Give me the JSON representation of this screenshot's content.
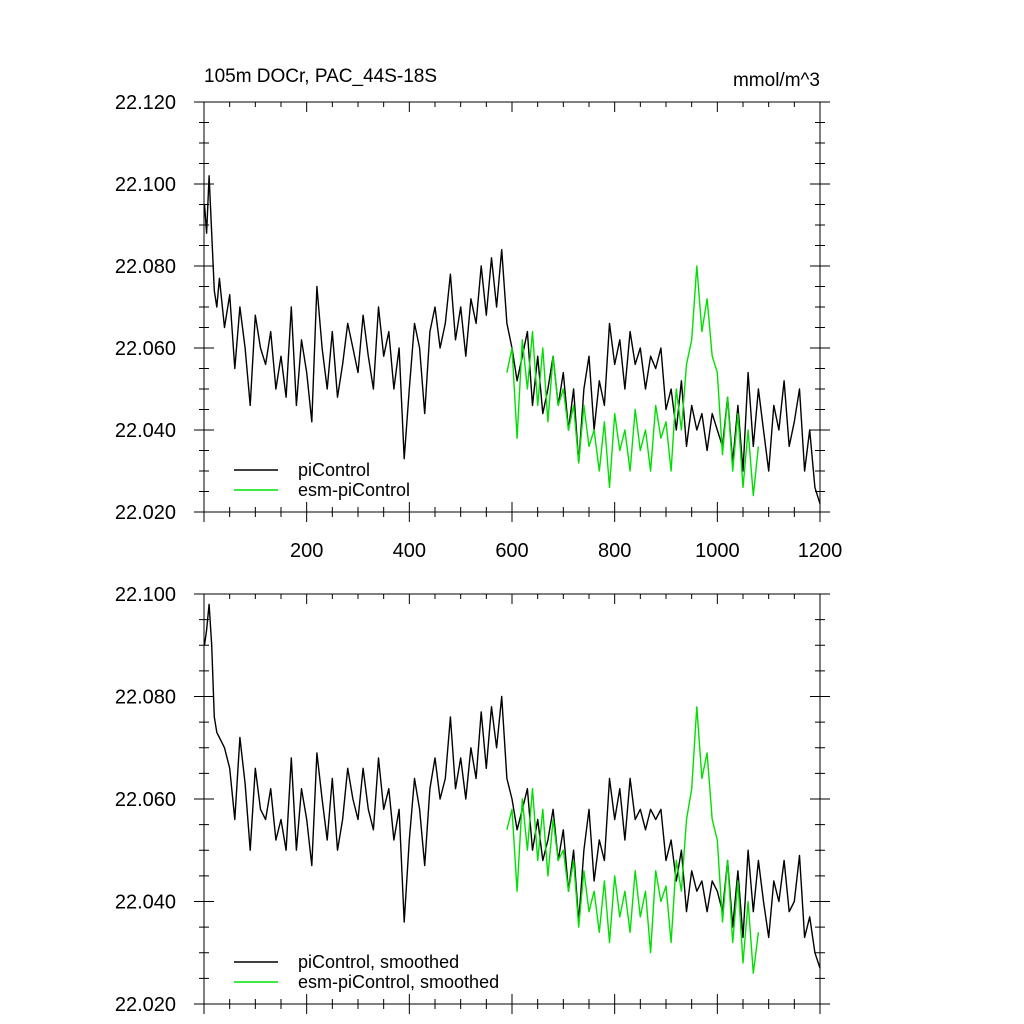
{
  "chart_data": [
    {
      "type": "line",
      "title": "105m DOCr, PAC_44S-18S",
      "units": "mmol/m^3",
      "xlabel": "",
      "ylabel": "",
      "xlim": [
        0,
        1200
      ],
      "ylim": [
        22.02,
        22.12
      ],
      "x_ticks": [
        200,
        400,
        600,
        800,
        1000,
        1200
      ],
      "y_ticks": [
        "22.020",
        "22.040",
        "22.060",
        "22.080",
        "22.100",
        "22.120"
      ],
      "legend_position": "bottom-left",
      "grid": false,
      "series": [
        {
          "name": "piControl",
          "color": "#000000",
          "x": [
            1,
            5,
            10,
            15,
            20,
            25,
            30,
            40,
            50,
            60,
            70,
            80,
            90,
            100,
            110,
            120,
            130,
            140,
            150,
            160,
            170,
            180,
            190,
            200,
            210,
            220,
            230,
            240,
            250,
            260,
            270,
            280,
            290,
            300,
            310,
            320,
            330,
            340,
            350,
            360,
            370,
            380,
            390,
            400,
            410,
            420,
            430,
            440,
            450,
            460,
            470,
            480,
            490,
            500,
            510,
            520,
            530,
            540,
            550,
            560,
            570,
            580,
            590,
            600,
            610,
            620,
            630,
            640,
            650,
            660,
            670,
            680,
            690,
            700,
            710,
            720,
            730,
            740,
            750,
            760,
            770,
            780,
            790,
            800,
            810,
            820,
            830,
            840,
            850,
            860,
            870,
            880,
            890,
            900,
            910,
            920,
            930,
            940,
            950,
            960,
            970,
            980,
            990,
            1000,
            1010,
            1020,
            1030,
            1040,
            1050,
            1060,
            1070,
            1080,
            1090,
            1100,
            1110,
            1120,
            1130,
            1140,
            1150,
            1160,
            1170,
            1180,
            1190,
            1200
          ],
          "values": [
            22.095,
            22.088,
            22.102,
            22.088,
            22.074,
            22.07,
            22.077,
            22.065,
            22.073,
            22.055,
            22.07,
            22.06,
            22.046,
            22.068,
            22.06,
            22.056,
            22.064,
            22.05,
            22.058,
            22.048,
            22.07,
            22.046,
            22.062,
            22.054,
            22.042,
            22.075,
            22.06,
            22.05,
            22.064,
            22.048,
            22.056,
            22.066,
            22.06,
            22.054,
            22.068,
            22.058,
            22.05,
            22.07,
            22.058,
            22.064,
            22.05,
            22.06,
            22.033,
            22.05,
            22.066,
            22.06,
            22.044,
            22.064,
            22.07,
            22.06,
            22.066,
            22.078,
            22.062,
            22.07,
            22.058,
            22.072,
            22.066,
            22.08,
            22.068,
            22.082,
            22.07,
            22.084,
            22.066,
            22.06,
            22.052,
            22.058,
            22.064,
            22.046,
            22.058,
            22.044,
            22.05,
            22.058,
            22.046,
            22.054,
            22.04,
            22.05,
            22.032,
            22.05,
            22.058,
            22.04,
            22.052,
            22.046,
            22.066,
            22.056,
            22.062,
            22.05,
            22.064,
            22.056,
            22.06,
            22.05,
            22.058,
            22.055,
            22.06,
            22.045,
            22.05,
            22.04,
            22.052,
            22.036,
            22.046,
            22.04,
            22.044,
            22.035,
            22.044,
            22.04,
            22.036,
            22.048,
            22.032,
            22.046,
            22.03,
            22.054,
            22.036,
            22.05,
            22.04,
            22.03,
            22.046,
            22.04,
            22.052,
            22.036,
            22.042,
            22.05,
            22.03,
            22.04,
            22.026,
            22.022
          ]
        },
        {
          "name": "esm-piControl",
          "color": "#00e000",
          "x": [
            590,
            600,
            610,
            620,
            630,
            640,
            650,
            660,
            670,
            680,
            690,
            700,
            710,
            720,
            730,
            740,
            750,
            760,
            770,
            780,
            790,
            800,
            810,
            820,
            830,
            840,
            850,
            860,
            870,
            880,
            890,
            900,
            910,
            920,
            930,
            940,
            950,
            960,
            970,
            980,
            990,
            1000,
            1010,
            1020,
            1030,
            1040,
            1050,
            1060,
            1070,
            1080
          ],
          "values": [
            22.054,
            22.06,
            22.038,
            22.062,
            22.05,
            22.064,
            22.046,
            22.06,
            22.042,
            22.058,
            22.046,
            22.05,
            22.04,
            22.046,
            22.032,
            22.046,
            22.036,
            22.04,
            22.03,
            22.042,
            22.026,
            22.044,
            22.035,
            22.04,
            22.03,
            22.045,
            22.035,
            22.04,
            22.03,
            22.046,
            22.038,
            22.042,
            22.03,
            22.05,
            22.04,
            22.056,
            22.062,
            22.08,
            22.064,
            22.072,
            22.058,
            22.054,
            22.034,
            22.048,
            22.03,
            22.044,
            22.026,
            22.04,
            22.024,
            22.036
          ]
        }
      ]
    },
    {
      "type": "line",
      "title": "",
      "xlabel": "",
      "ylabel": "",
      "xlim": [
        0,
        1200
      ],
      "ylim": [
        22.02,
        22.1
      ],
      "y_ticks": [
        "22.020",
        "22.040",
        "22.060",
        "22.080",
        "22.100"
      ],
      "legend_position": "bottom-left",
      "grid": false,
      "series": [
        {
          "name": "piControl, smoothed",
          "color": "#000000",
          "x": [
            1,
            5,
            10,
            15,
            20,
            25,
            30,
            40,
            50,
            60,
            70,
            80,
            90,
            100,
            110,
            120,
            130,
            140,
            150,
            160,
            170,
            180,
            190,
            200,
            210,
            220,
            230,
            240,
            250,
            260,
            270,
            280,
            290,
            300,
            310,
            320,
            330,
            340,
            350,
            360,
            370,
            380,
            390,
            400,
            410,
            420,
            430,
            440,
            450,
            460,
            470,
            480,
            490,
            500,
            510,
            520,
            530,
            540,
            550,
            560,
            570,
            580,
            590,
            600,
            610,
            620,
            630,
            640,
            650,
            660,
            670,
            680,
            690,
            700,
            710,
            720,
            730,
            740,
            750,
            760,
            770,
            780,
            790,
            800,
            810,
            820,
            830,
            840,
            850,
            860,
            870,
            880,
            890,
            900,
            910,
            920,
            930,
            940,
            950,
            960,
            970,
            980,
            990,
            1000,
            1010,
            1020,
            1030,
            1040,
            1050,
            1060,
            1070,
            1080,
            1090,
            1100,
            1110,
            1120,
            1130,
            1140,
            1150,
            1160,
            1170,
            1180,
            1190,
            1200
          ],
          "values": [
            22.09,
            22.093,
            22.098,
            22.09,
            22.076,
            22.073,
            22.072,
            22.07,
            22.066,
            22.056,
            22.072,
            22.063,
            22.05,
            22.066,
            22.058,
            22.056,
            22.062,
            22.052,
            22.056,
            22.05,
            22.068,
            22.05,
            22.062,
            22.056,
            22.047,
            22.069,
            22.06,
            22.052,
            22.064,
            22.05,
            22.056,
            22.066,
            22.06,
            22.056,
            22.066,
            22.058,
            22.054,
            22.068,
            22.058,
            22.062,
            22.052,
            22.058,
            22.036,
            22.052,
            22.064,
            22.058,
            22.047,
            22.062,
            22.068,
            22.06,
            22.064,
            22.076,
            22.062,
            22.068,
            22.06,
            22.07,
            22.064,
            22.077,
            22.066,
            22.078,
            22.07,
            22.08,
            22.064,
            22.06,
            22.054,
            22.058,
            22.062,
            22.05,
            22.056,
            22.048,
            22.052,
            22.058,
            22.048,
            22.054,
            22.042,
            22.05,
            22.036,
            22.05,
            22.058,
            22.044,
            22.052,
            22.048,
            22.064,
            22.056,
            22.062,
            22.052,
            22.064,
            22.056,
            22.058,
            22.054,
            22.058,
            22.056,
            22.058,
            22.048,
            22.052,
            22.044,
            22.05,
            22.038,
            22.046,
            22.042,
            22.044,
            22.038,
            22.044,
            22.042,
            22.038,
            22.048,
            22.035,
            22.046,
            22.033,
            22.05,
            22.038,
            22.048,
            22.04,
            22.033,
            22.044,
            22.04,
            22.048,
            22.038,
            22.04,
            22.049,
            22.033,
            22.037,
            22.03,
            22.027
          ]
        },
        {
          "name": "esm-piControl, smoothed",
          "color": "#00e000",
          "x": [
            590,
            600,
            610,
            620,
            630,
            640,
            650,
            660,
            670,
            680,
            690,
            700,
            710,
            720,
            730,
            740,
            750,
            760,
            770,
            780,
            790,
            800,
            810,
            820,
            830,
            840,
            850,
            860,
            870,
            880,
            890,
            900,
            910,
            920,
            930,
            940,
            950,
            960,
            970,
            980,
            990,
            1000,
            1010,
            1020,
            1030,
            1040,
            1050,
            1060,
            1070,
            1080
          ],
          "values": [
            22.054,
            22.058,
            22.042,
            22.06,
            22.05,
            22.062,
            22.048,
            22.058,
            22.045,
            22.056,
            22.048,
            22.05,
            22.042,
            22.048,
            22.035,
            22.046,
            22.038,
            22.042,
            22.034,
            22.044,
            22.032,
            22.045,
            22.037,
            22.042,
            22.034,
            22.046,
            22.037,
            22.042,
            22.03,
            22.046,
            22.04,
            22.043,
            22.032,
            22.048,
            22.042,
            22.056,
            22.062,
            22.078,
            22.064,
            22.069,
            22.056,
            22.052,
            22.036,
            22.048,
            22.032,
            22.044,
            22.028,
            22.04,
            22.026,
            22.034
          ]
        }
      ]
    }
  ]
}
